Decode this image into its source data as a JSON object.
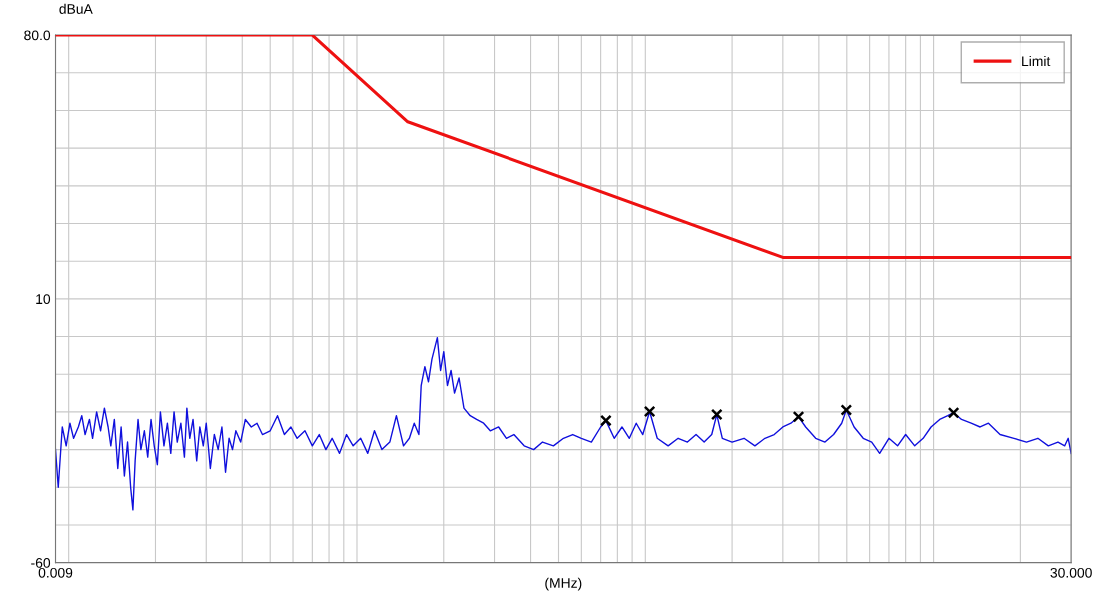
{
  "chart_data": {
    "type": "line",
    "xlabel": "(MHz)",
    "ylabel": "dBuA",
    "log": "x",
    "grid": true,
    "legend": "top right",
    "xlim": [
      0.009,
      30
    ],
    "ylim": [
      -60,
      80
    ],
    "xticks": [
      {
        "value": 0.009,
        "label": "0.009"
      },
      {
        "value": 0.01,
        "label": null
      },
      {
        "value": 0.02,
        "label": null
      },
      {
        "value": 0.03,
        "label": null
      },
      {
        "value": 0.04,
        "label": null
      },
      {
        "value": 0.05,
        "label": null
      },
      {
        "value": 0.06,
        "label": null
      },
      {
        "value": 0.07,
        "label": null
      },
      {
        "value": 0.08,
        "label": null
      },
      {
        "value": 0.09,
        "label": null
      },
      {
        "value": 0.1,
        "label": null
      },
      {
        "value": 0.2,
        "label": null
      },
      {
        "value": 0.3,
        "label": null
      },
      {
        "value": 0.4,
        "label": null
      },
      {
        "value": 0.5,
        "label": null
      },
      {
        "value": 0.6,
        "label": null
      },
      {
        "value": 0.7,
        "label": null
      },
      {
        "value": 0.8,
        "label": null
      },
      {
        "value": 0.9,
        "label": null
      },
      {
        "value": 1,
        "label": null
      },
      {
        "value": 2,
        "label": null
      },
      {
        "value": 3,
        "label": null
      },
      {
        "value": 4,
        "label": null
      },
      {
        "value": 5,
        "label": null
      },
      {
        "value": 6,
        "label": null
      },
      {
        "value": 7,
        "label": null
      },
      {
        "value": 8,
        "label": null
      },
      {
        "value": 9,
        "label": null
      },
      {
        "value": 10,
        "label": null
      },
      {
        "value": 20,
        "label": null
      },
      {
        "value": 30,
        "label": "30.000"
      }
    ],
    "yticks": [
      {
        "value": -60,
        "label": "-60"
      },
      {
        "value": -50,
        "label": null
      },
      {
        "value": -40,
        "label": null
      },
      {
        "value": -30,
        "label": null
      },
      {
        "value": -20,
        "label": null
      },
      {
        "value": -10,
        "label": null
      },
      {
        "value": 0,
        "label": null
      },
      {
        "value": 10,
        "label": "10"
      },
      {
        "value": 20,
        "label": null
      },
      {
        "value": 30,
        "label": null
      },
      {
        "value": 40,
        "label": null
      },
      {
        "value": 50,
        "label": null
      },
      {
        "value": 60,
        "label": null
      },
      {
        "value": 70,
        "label": null
      },
      {
        "value": 80,
        "label": "80.0"
      }
    ],
    "series": [
      {
        "name": "Limit",
        "color": "#ee1111",
        "x": [
          0.009,
          0.07,
          0.15,
          3,
          30
        ],
        "values": [
          80,
          80,
          57,
          21,
          21
        ]
      },
      {
        "color": "#1010dd",
        "x": [
          0.009,
          0.0092,
          0.0095,
          0.0098,
          0.0101,
          0.0104,
          0.0108,
          0.0111,
          0.0114,
          0.0118,
          0.0121,
          0.0125,
          0.0129,
          0.0133,
          0.0137,
          0.014,
          0.0144,
          0.0148,
          0.0152,
          0.0156,
          0.016,
          0.0164,
          0.0167,
          0.017,
          0.0174,
          0.0178,
          0.0183,
          0.0188,
          0.0193,
          0.0198,
          0.0203,
          0.0208,
          0.0214,
          0.022,
          0.0226,
          0.0232,
          0.0238,
          0.0245,
          0.0252,
          0.0257,
          0.0263,
          0.027,
          0.0278,
          0.0285,
          0.0293,
          0.03,
          0.031,
          0.032,
          0.033,
          0.034,
          0.035,
          0.036,
          0.037,
          0.038,
          0.0395,
          0.041,
          0.043,
          0.045,
          0.047,
          0.05,
          0.053,
          0.056,
          0.059,
          0.062,
          0.066,
          0.07,
          0.074,
          0.078,
          0.082,
          0.087,
          0.092,
          0.097,
          0.103,
          0.109,
          0.115,
          0.122,
          0.13,
          0.137,
          0.145,
          0.152,
          0.158,
          0.164,
          0.167,
          0.172,
          0.177,
          0.182,
          0.19,
          0.195,
          0.2,
          0.206,
          0.212,
          0.218,
          0.226,
          0.235,
          0.247,
          0.26,
          0.275,
          0.29,
          0.31,
          0.33,
          0.35,
          0.38,
          0.41,
          0.44,
          0.48,
          0.52,
          0.56,
          0.6,
          0.65,
          0.7,
          0.73,
          0.78,
          0.83,
          0.88,
          0.93,
          0.98,
          1.035,
          1.1,
          1.2,
          1.3,
          1.4,
          1.5,
          1.6,
          1.7,
          1.77,
          1.85,
          2.0,
          2.2,
          2.4,
          2.6,
          2.8,
          3.0,
          3.2,
          3.4,
          3.6,
          3.9,
          4.2,
          4.5,
          4.8,
          4.98,
          5.3,
          5.7,
          6.1,
          6.5,
          7.0,
          7.5,
          8.0,
          8.6,
          9.2,
          9.8,
          10.5,
          11.2,
          11.73,
          12.5,
          13.5,
          14.5,
          15.5,
          17,
          19,
          21,
          23,
          25,
          27,
          28.5,
          29.3,
          30
        ],
        "values": [
          -30,
          -40,
          -24,
          -29,
          -23,
          -27,
          -24,
          -21,
          -26,
          -22,
          -27,
          -20,
          -25,
          -19,
          -24,
          -29,
          -22,
          -35,
          -24,
          -37,
          -28,
          -40,
          -46,
          -33,
          -22,
          -30,
          -25,
          -32,
          -22,
          -29,
          -34,
          -20,
          -29,
          -23,
          -31,
          -20,
          -28,
          -23,
          -32,
          -19,
          -27,
          -22,
          -33,
          -24,
          -29,
          -23,
          -35,
          -26,
          -30,
          -24,
          -36,
          -27,
          -30,
          -25,
          -28,
          -22,
          -24,
          -23,
          -26,
          -25,
          -21,
          -26,
          -24,
          -27,
          -25,
          -29,
          -26,
          -30,
          -27,
          -31,
          -26,
          -29,
          -27,
          -31,
          -25,
          -30,
          -28,
          -21,
          -29,
          -27,
          -23,
          -26,
          -13,
          -8,
          -12,
          -6,
          -0.3,
          -9,
          -4,
          -13,
          -9,
          -15,
          -11,
          -19,
          -21,
          -22,
          -23,
          -25,
          -24,
          -27,
          -26,
          -29,
          -30,
          -28,
          -29,
          -27,
          -26,
          -27,
          -28,
          -24,
          -22.3,
          -27,
          -24,
          -27,
          -23,
          -26,
          -19.9,
          -27,
          -29,
          -27,
          -28,
          -26,
          -28,
          -26,
          -20.7,
          -27,
          -28,
          -27,
          -29,
          -27,
          -26,
          -24,
          -23,
          -21.3,
          -24,
          -27,
          -28,
          -26,
          -23,
          -19.5,
          -24,
          -27,
          -28,
          -31,
          -27,
          -29,
          -26,
          -29,
          -27,
          -24,
          -22,
          -21,
          -20.2,
          -22,
          -23,
          -24,
          -23,
          -26,
          -27,
          -28,
          -27,
          -29,
          -28,
          -29,
          -27,
          -31
        ]
      },
      {
        "color": "#000000",
        "type": "scatter",
        "marker": "cross",
        "x": [
          0.73,
          1.035,
          1.77,
          3.4,
          4.98,
          11.73
        ],
        "values": [
          -22.3,
          -19.9,
          -20.7,
          -21.3,
          -19.5,
          -20.2
        ]
      }
    ]
  }
}
